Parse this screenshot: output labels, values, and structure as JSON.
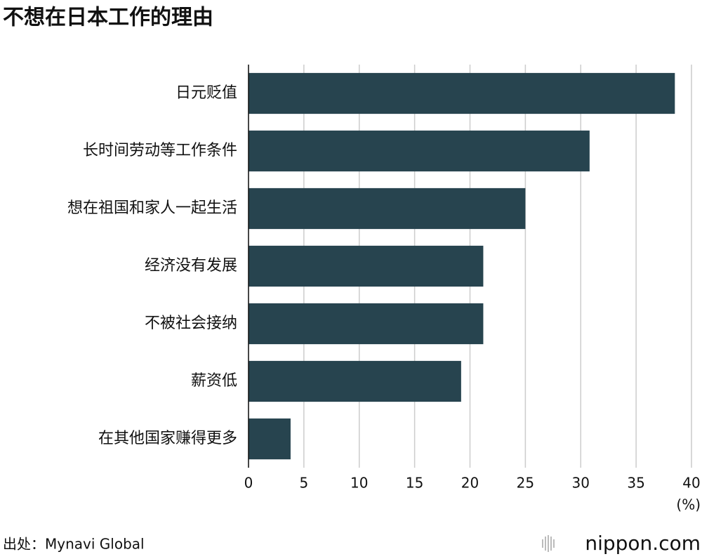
{
  "chart_data": {
    "type": "bar",
    "orientation": "horizontal",
    "title": "不想在日本工作的理由",
    "categories": [
      "日元贬值",
      "长时间劳动等工作条件",
      "想在祖国和家人一起生活",
      "经济没有发展",
      "不被社会接纳",
      "薪资低",
      "在其他国家赚得更多"
    ],
    "values": [
      38.5,
      30.8,
      25.0,
      21.2,
      21.2,
      19.2,
      3.8
    ],
    "color": "#27444f",
    "xlim": [
      0,
      40
    ],
    "xticks": [
      0,
      5,
      10,
      15,
      20,
      25,
      30,
      35,
      40
    ],
    "x_unit_label": "(%)",
    "grid": true,
    "source": "出处：Mynavi Global",
    "logo": "nippon.com"
  }
}
